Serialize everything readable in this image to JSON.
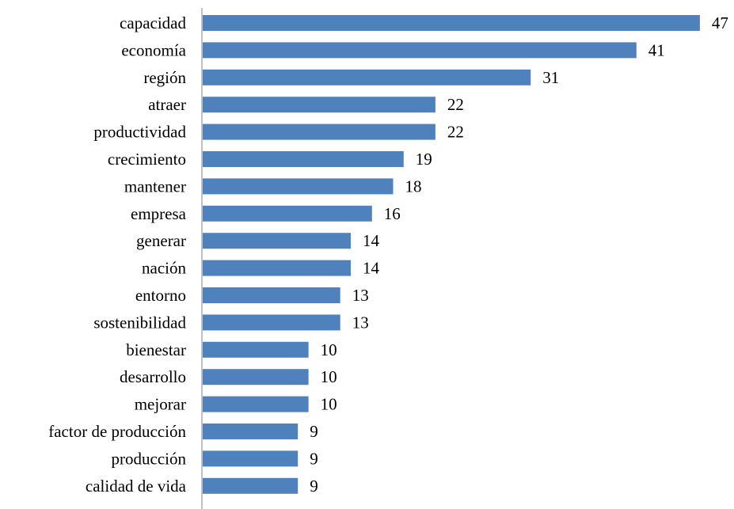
{
  "chart_data": {
    "type": "bar",
    "orientation": "horizontal",
    "categories": [
      "capacidad",
      "economía",
      "región",
      "atraer",
      "productividad",
      "crecimiento",
      "mantener",
      "empresa",
      "generar",
      "nación",
      "entorno",
      "sostenibilidad",
      "bienestar",
      "desarrollo",
      "mejorar",
      "factor de producción",
      "producción",
      "calidad de vida"
    ],
    "values": [
      47,
      41,
      31,
      22,
      22,
      19,
      18,
      16,
      14,
      14,
      13,
      13,
      10,
      10,
      10,
      9,
      9,
      9
    ],
    "title": "",
    "xlabel": "",
    "ylabel": "",
    "xlim": [
      0,
      47
    ],
    "grid": false,
    "legend": "none",
    "data_labels": true,
    "bar_color": "#4f81bd"
  }
}
